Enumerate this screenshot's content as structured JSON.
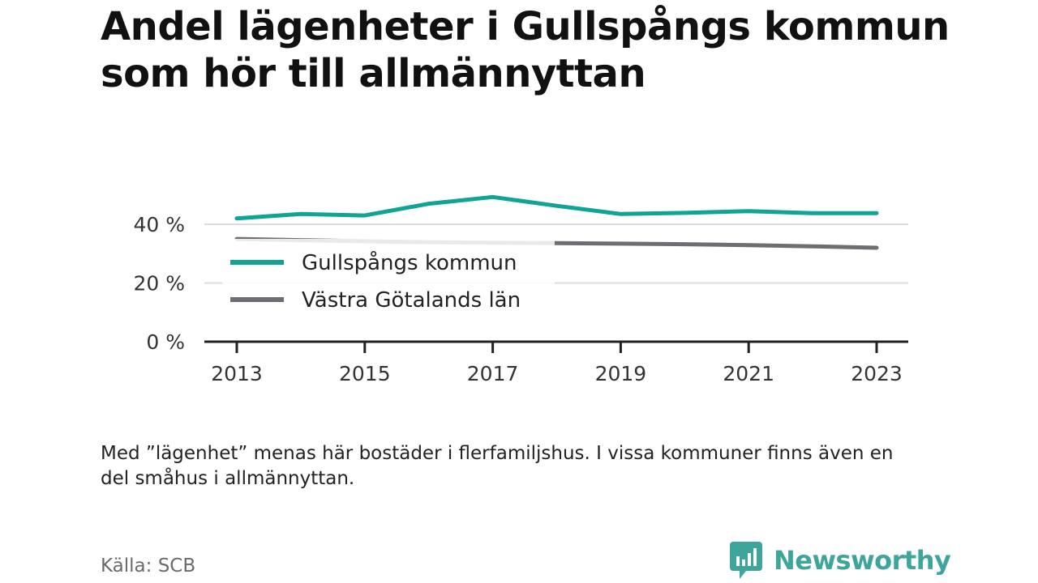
{
  "title": "Andel lägenheter i Gullspångs kommun som hör till allmännyttan",
  "note": "Med ”lägenhet” menas här bostäder i flerfamiljshus. I vissa kommuner finns även en del småhus i allmännyttan.",
  "source": "Källa: SCB",
  "brand": {
    "name": "Newsworthy",
    "icon": "newsworthy-logo-icon",
    "color": "#3da59a"
  },
  "chart_data": {
    "type": "line",
    "title": "Andel lägenheter i Gullspångs kommun som hör till allmännyttan",
    "xlabel": "",
    "ylabel": "",
    "x": [
      2013,
      2014,
      2015,
      2016,
      2017,
      2018,
      2019,
      2020,
      2021,
      2022,
      2023
    ],
    "x_ticks": [
      2013,
      2015,
      2017,
      2019,
      2021,
      2023
    ],
    "x_tick_labels": [
      "2013",
      "2015",
      "2017",
      "2019",
      "2021",
      "2023"
    ],
    "y_ticks": [
      0,
      20,
      40
    ],
    "y_tick_labels": [
      "0 %",
      "20 %",
      "40 %"
    ],
    "ylim": [
      0,
      48
    ],
    "grid": true,
    "legend_position": "bottom-left",
    "series": [
      {
        "name": "Gullspångs kommun",
        "color": "#11a396",
        "values": [
          42.0,
          43.5,
          43.0,
          47.0,
          49.3,
          46.3,
          43.5,
          43.9,
          44.5,
          43.8,
          43.8
        ]
      },
      {
        "name": "Västra Götalands län",
        "color": "#6e6e72",
        "values": [
          35.0,
          34.6,
          34.2,
          33.9,
          33.7,
          33.6,
          33.4,
          33.2,
          32.9,
          32.5,
          32.0
        ]
      }
    ]
  }
}
